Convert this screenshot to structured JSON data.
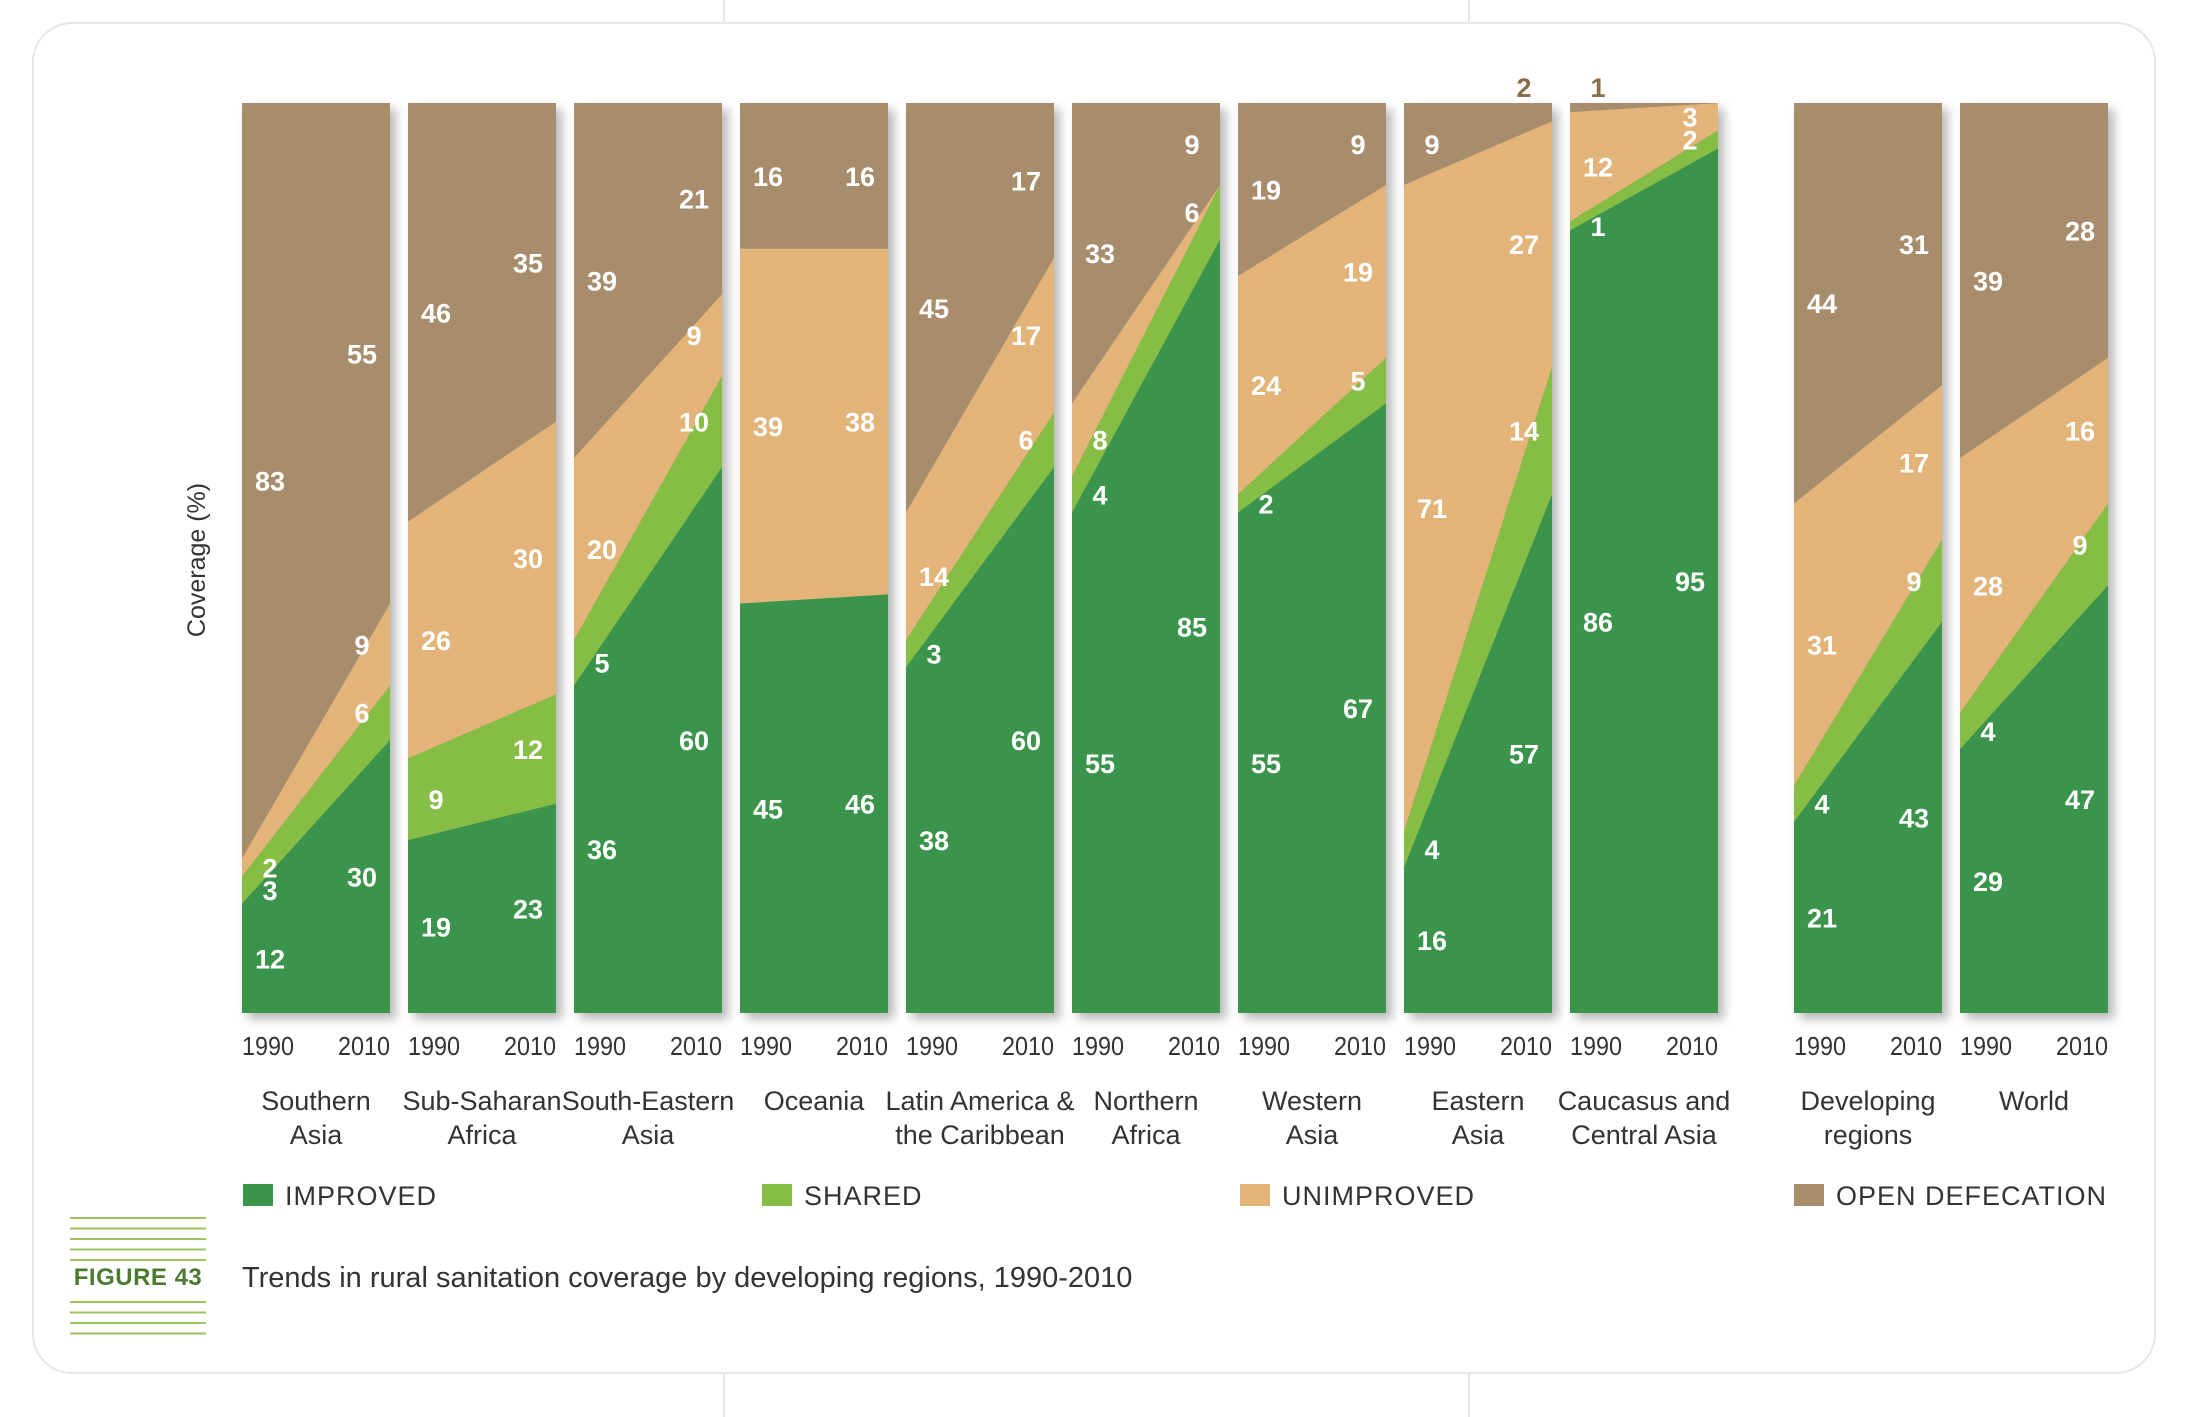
{
  "figure": {
    "label": "FIGURE 43",
    "title": "Trends in rural sanitation coverage by developing regions, 1990-2010"
  },
  "colors": {
    "improved": "#3a944b",
    "shared": "#86bd45",
    "unimproved": "#e3b47a",
    "open_defecation": "#a88d6d",
    "label_text": "#ffffff",
    "outside_label_text": "#8a6d4a",
    "axis_text": "#333333",
    "caption_lines": "#9ac45f"
  },
  "chart_data": {
    "type": "area",
    "title": "",
    "ylabel": "Coverage (%)",
    "ylim": [
      0,
      100
    ],
    "stack_order": [
      "improved",
      "shared",
      "unimproved",
      "open_defecation"
    ],
    "legend": {
      "placement": "bottom",
      "entries": [
        {
          "key": "improved",
          "label": "IMPROVED"
        },
        {
          "key": "shared",
          "label": "SHARED"
        },
        {
          "key": "unimproved",
          "label": "UNIMPROVED"
        },
        {
          "key": "open_defecation",
          "label": "OPEN DEFECATION"
        }
      ]
    },
    "years": [
      "1990",
      "2010"
    ],
    "regions": [
      {
        "name": "Southern\nAsia",
        "data": {
          "improved": [
            12,
            30
          ],
          "shared": [
            3,
            6
          ],
          "unimproved": [
            2,
            9
          ],
          "open_defecation": [
            83,
            55
          ]
        }
      },
      {
        "name": "Sub-Saharan\nAfrica",
        "data": {
          "improved": [
            19,
            23
          ],
          "shared": [
            9,
            12
          ],
          "unimproved": [
            26,
            30
          ],
          "open_defecation": [
            46,
            35
          ]
        }
      },
      {
        "name": "South-Eastern\nAsia",
        "data": {
          "improved": [
            36,
            60
          ],
          "shared": [
            5,
            10
          ],
          "unimproved": [
            20,
            9
          ],
          "open_defecation": [
            39,
            21
          ]
        }
      },
      {
        "name": "Oceania",
        "data": {
          "improved": [
            45,
            46
          ],
          "shared": [
            null,
            null
          ],
          "unimproved": [
            39,
            38
          ],
          "open_defecation": [
            16,
            16
          ]
        }
      },
      {
        "name": "Latin America &\nthe Caribbean",
        "data": {
          "improved": [
            38,
            60
          ],
          "shared": [
            3,
            6
          ],
          "unimproved": [
            14,
            17
          ],
          "open_defecation": [
            45,
            17
          ]
        }
      },
      {
        "name": "Northern\nAfrica",
        "data": {
          "improved": [
            55,
            85
          ],
          "shared": [
            4,
            6
          ],
          "unimproved": [
            8,
            null
          ],
          "open_defecation": [
            33,
            9
          ]
        }
      },
      {
        "name": "Western\nAsia",
        "data": {
          "improved": [
            55,
            67
          ],
          "shared": [
            2,
            5
          ],
          "unimproved": [
            24,
            19
          ],
          "open_defecation": [
            19,
            9
          ]
        }
      },
      {
        "name": "Eastern\nAsia",
        "data": {
          "improved": [
            16,
            57
          ],
          "shared": [
            4,
            14
          ],
          "unimproved": [
            71,
            27
          ],
          "open_defecation": [
            9,
            2
          ]
        }
      },
      {
        "name": "Caucasus and\nCentral Asia",
        "data": {
          "improved": [
            86,
            95
          ],
          "shared": [
            1,
            2
          ],
          "unimproved": [
            12,
            3
          ],
          "open_defecation": [
            1,
            null
          ]
        }
      },
      {
        "name": "Developing\nregions",
        "gap_before": true,
        "data": {
          "improved": [
            21,
            43
          ],
          "shared": [
            4,
            9
          ],
          "unimproved": [
            31,
            17
          ],
          "open_defecation": [
            44,
            31
          ]
        }
      },
      {
        "name": "World",
        "data": {
          "improved": [
            29,
            47
          ],
          "shared": [
            4,
            9
          ],
          "unimproved": [
            28,
            16
          ],
          "open_defecation": [
            39,
            28
          ]
        }
      }
    ]
  }
}
